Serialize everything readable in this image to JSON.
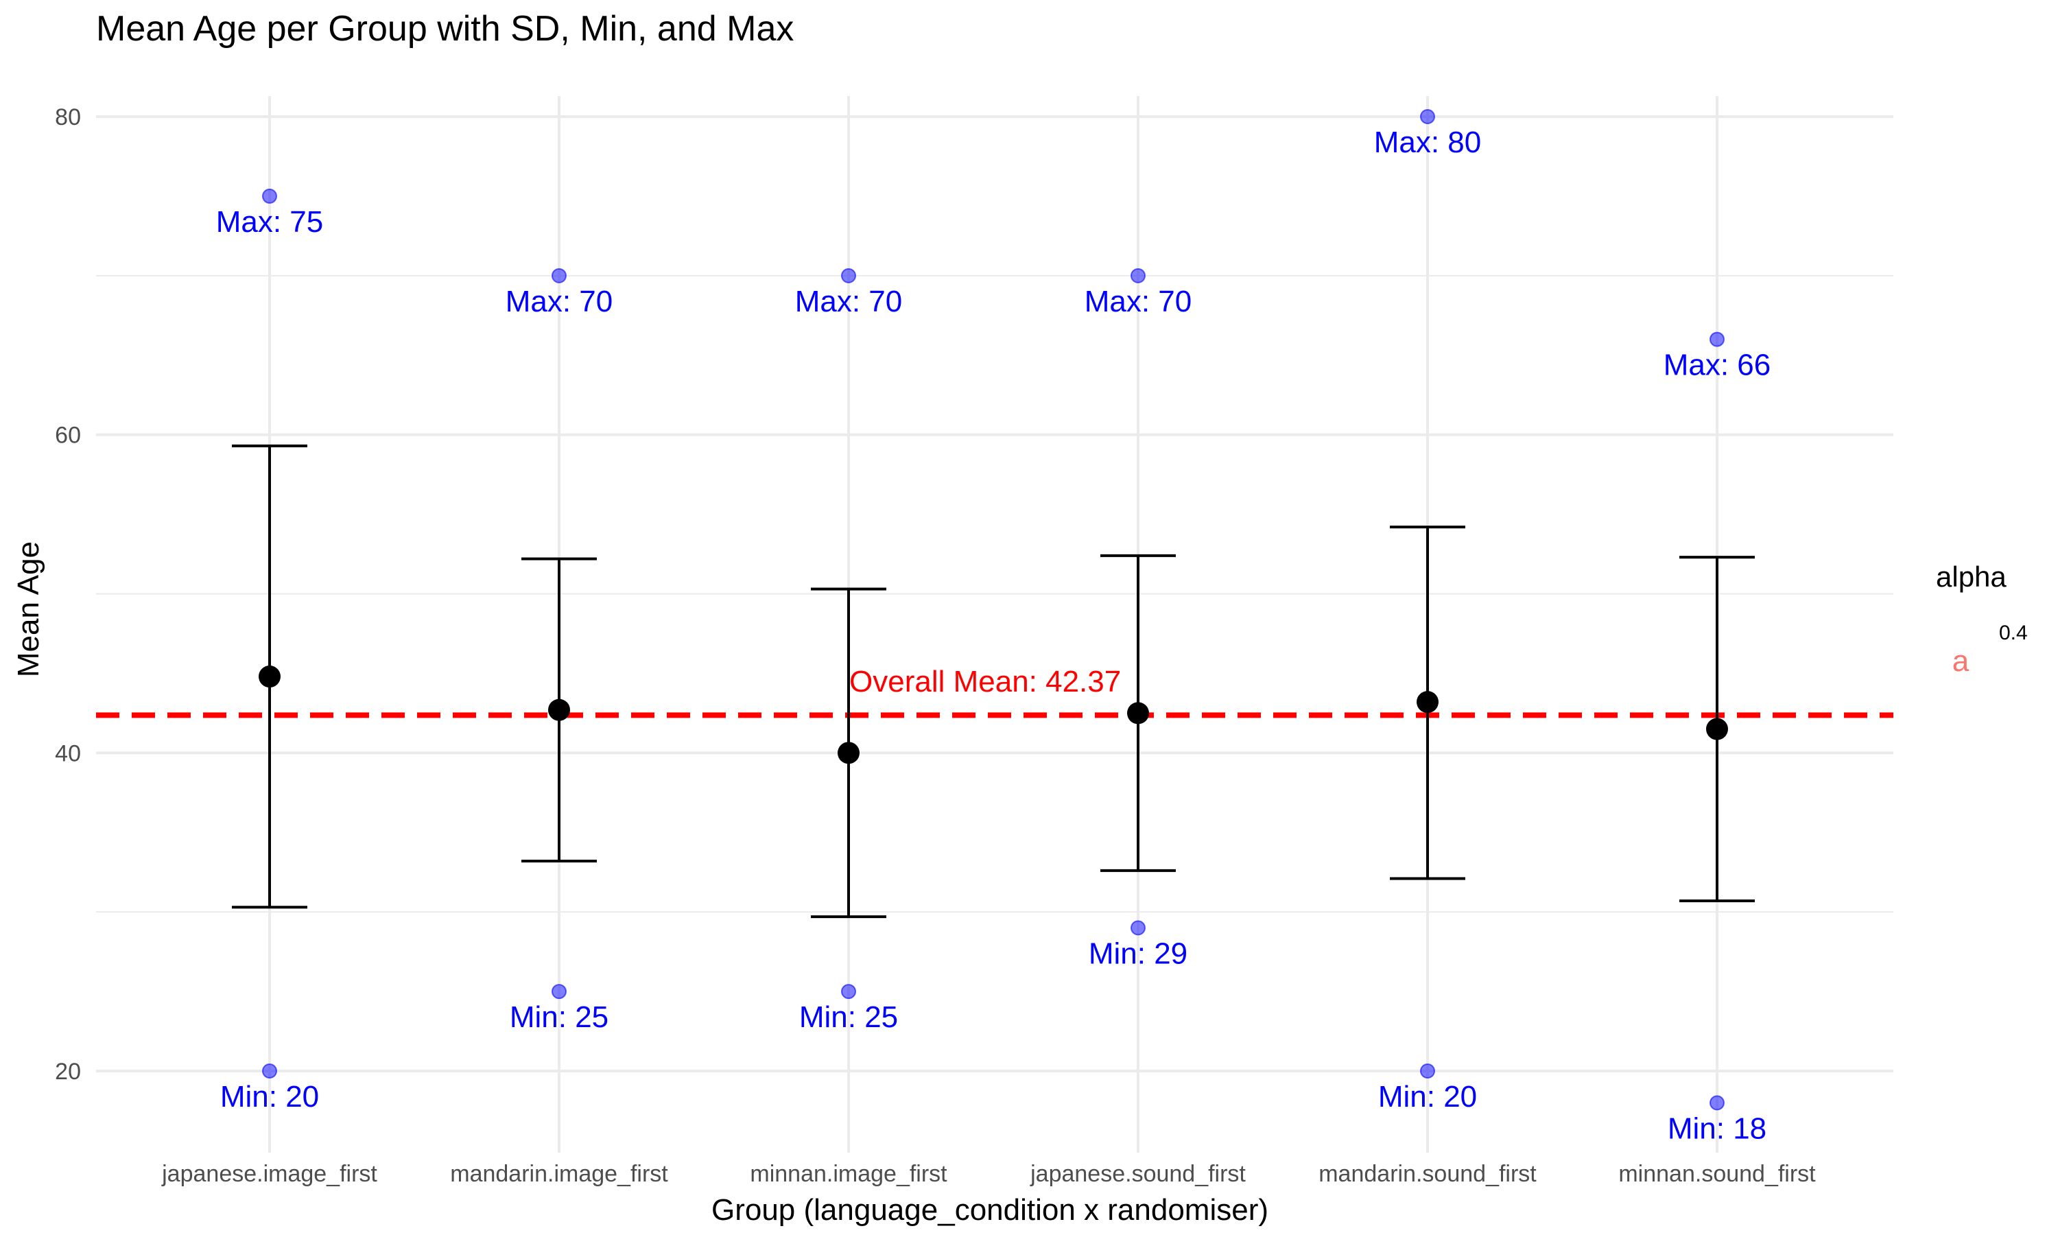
{
  "chart_data": {
    "type": "scatter",
    "title": "Mean Age per Group with SD, Min, and Max",
    "xlabel": "Group (language_condition x randomiser)",
    "ylabel": "Mean Age",
    "ylim": [
      15,
      83
    ],
    "yticks": [
      20,
      40,
      60,
      80
    ],
    "grid": true,
    "categories": [
      "japanese.image_first",
      "mandarin.image_first",
      "minnan.image_first",
      "japanese.sound_first",
      "mandarin.sound_first",
      "minnan.sound_first"
    ],
    "series": [
      {
        "name": "Mean",
        "values": [
          44.8,
          42.7,
          40.0,
          42.5,
          43.2,
          41.5
        ]
      },
      {
        "name": "SD lower",
        "values": [
          30.3,
          33.2,
          29.7,
          32.6,
          32.1,
          30.7
        ]
      },
      {
        "name": "SD upper",
        "values": [
          59.3,
          52.2,
          50.3,
          52.4,
          54.2,
          52.3
        ]
      },
      {
        "name": "Min",
        "values": [
          20,
          25,
          25,
          29,
          20,
          18
        ]
      },
      {
        "name": "Max",
        "values": [
          75,
          70,
          70,
          70,
          80,
          66
        ]
      }
    ],
    "min_labels": [
      "Min: 20",
      "Min: 25",
      "Min: 25",
      "Min: 29",
      "Min: 20",
      "Min: 18"
    ],
    "max_labels": [
      "Max: 75",
      "Max: 70",
      "Max: 70",
      "Max: 70",
      "Max: 80",
      "Max: 66"
    ],
    "overall_mean": 42.37,
    "overall_mean_label": "Overall Mean: 42.37",
    "legend": {
      "title": "alpha",
      "value_label": "0.4",
      "key_glyph": "a",
      "position": "right"
    },
    "colors": {
      "mean": "#000000",
      "errorbar": "#000000",
      "minmax": "#0000ff",
      "overall_line": "#ff0000",
      "grid": "#ebebeb",
      "legend_key": "#f8766d"
    }
  }
}
